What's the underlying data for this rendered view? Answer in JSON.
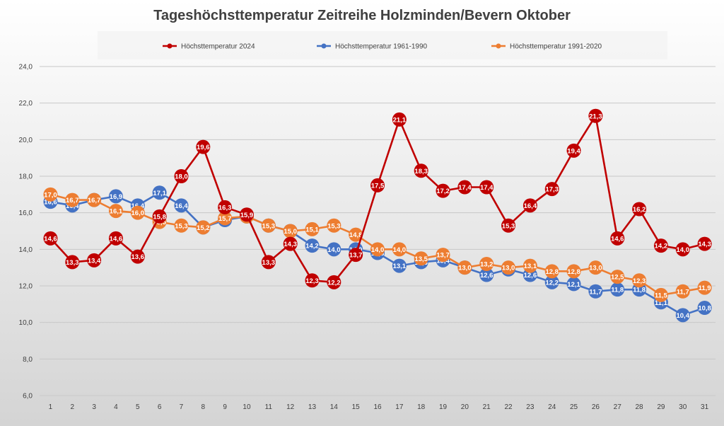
{
  "chart_data": {
    "type": "line",
    "title": "Tageshöchsttemperatur Zeitreihe Holzminden/Bevern Oktober",
    "xlabel": "",
    "ylabel": "",
    "x": [
      1,
      2,
      3,
      4,
      5,
      6,
      7,
      8,
      9,
      10,
      11,
      12,
      13,
      14,
      15,
      16,
      17,
      18,
      19,
      20,
      21,
      22,
      23,
      24,
      25,
      26,
      27,
      28,
      29,
      30,
      31
    ],
    "y_ticks": [
      "6,0",
      "8,0",
      "10,0",
      "12,0",
      "14,0",
      "16,0",
      "18,0",
      "20,0",
      "22,0",
      "24,0"
    ],
    "ylim": [
      6,
      24
    ],
    "grid": true,
    "legend_position": "top",
    "series": [
      {
        "name": "Höchsttemperatur 2024",
        "color": "#c00000",
        "values": [
          14.6,
          13.3,
          13.4,
          14.6,
          13.6,
          15.8,
          18.0,
          19.6,
          16.3,
          15.9,
          13.3,
          14.3,
          12.3,
          12.2,
          13.7,
          17.5,
          21.1,
          18.3,
          17.2,
          17.4,
          17.4,
          15.3,
          16.4,
          17.3,
          19.4,
          21.3,
          14.6,
          16.2,
          14.2,
          14.0,
          14.3
        ],
        "labels": [
          "14,6",
          "13,3",
          "13,4",
          "14,6",
          "13,6",
          "15,8",
          "18,0",
          "19,6",
          "16,3",
          "15,9",
          "13,3",
          "14,3",
          "12,3",
          "12,2",
          "13,7",
          "17,5",
          "21,1",
          "18,3",
          "17,2",
          "17,4",
          "17,4",
          "15,3",
          "16,4",
          "17,3",
          "19,4",
          "21,3",
          "14,6",
          "16,2",
          "14,2",
          "14,0",
          "14,3"
        ]
      },
      {
        "name": "Höchsttemperatur 1961-1990",
        "color": "#4472c4",
        "values": [
          16.6,
          16.4,
          16.7,
          16.9,
          16.4,
          17.1,
          16.4,
          15.2,
          15.6,
          15.8,
          15.3,
          15.0,
          14.2,
          14.0,
          14.0,
          13.8,
          13.1,
          13.3,
          13.4,
          13.0,
          12.6,
          12.9,
          12.6,
          12.2,
          12.1,
          11.7,
          11.8,
          11.8,
          11.1,
          10.4,
          10.8
        ],
        "labels": [
          "16,6",
          "16,4",
          "16,7",
          "16,9",
          "16,4",
          "17,1",
          "16,4",
          "15,2",
          "15,6",
          "15,8",
          "15,3",
          "15,0",
          "14,2",
          "14,0",
          "14,0",
          "13,8",
          "13,1",
          "13,3",
          "13,4",
          "13,0",
          "12,6",
          "12,9",
          "12,6",
          "12,2",
          "12,1",
          "11,7",
          "11,8",
          "11,8",
          "11,1",
          "10,4",
          "10,8"
        ]
      },
      {
        "name": "Höchsttemperatur 1991-2020",
        "color": "#ed7d31",
        "values": [
          17.0,
          16.7,
          16.7,
          16.1,
          16.0,
          15.5,
          15.3,
          15.2,
          15.7,
          15.8,
          15.3,
          15.0,
          15.1,
          15.3,
          14.8,
          14.0,
          14.0,
          13.5,
          13.7,
          13.0,
          13.2,
          13.0,
          13.1,
          12.8,
          12.8,
          13.0,
          12.5,
          12.3,
          11.5,
          11.7,
          11.9
        ],
        "labels": [
          "17,0",
          "16,7",
          "16,7",
          "16,1",
          "16,0",
          "15,5",
          "15,3",
          "15,2",
          "15,7",
          "15,8",
          "15,3",
          "15,0",
          "15,1",
          "15,3",
          "14,8",
          "14,0",
          "14,0",
          "13,5",
          "13,7",
          "13,0",
          "13,2",
          "13,0",
          "13,1",
          "12,8",
          "12,8",
          "13,0",
          "12,5",
          "12,3",
          "11,5",
          "11,7",
          "11,9"
        ]
      }
    ]
  }
}
